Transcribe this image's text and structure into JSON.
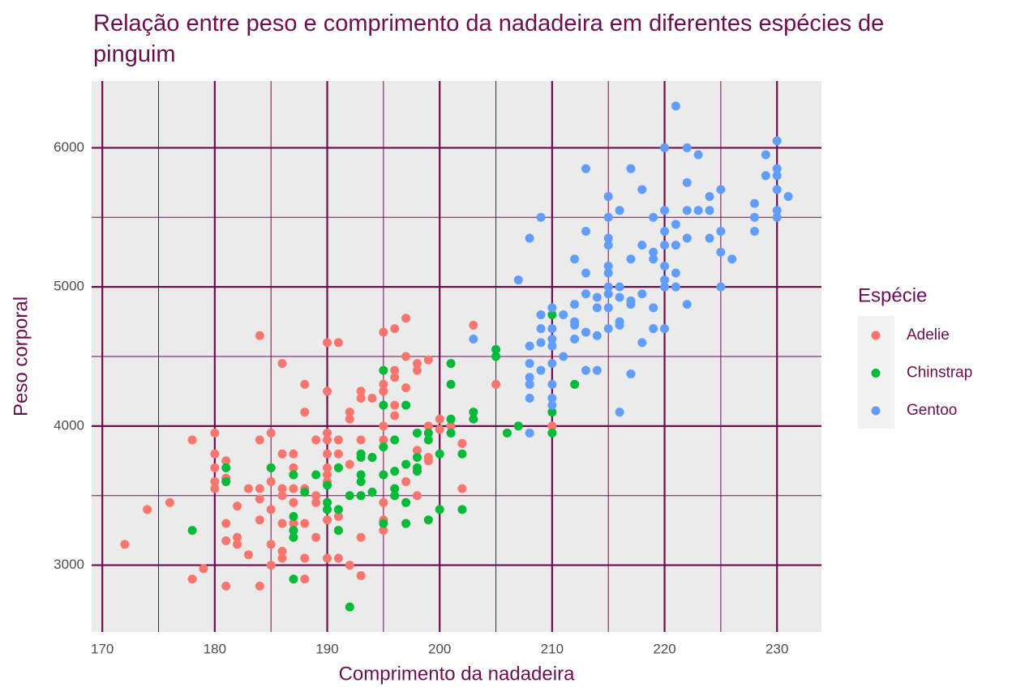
{
  "chart_data": {
    "type": "scatter",
    "title": "Relação entre peso e comprimento da nadadeira em diferentes espécies de pinguim",
    "x_label": "Comprimento da nadadeira",
    "y_label": "Peso corporal",
    "legend_title": "Espécie",
    "xlim": [
      169.05,
      233.95
    ],
    "ylim": [
      2520,
      6480
    ],
    "xticks": [
      170,
      180,
      190,
      200,
      210,
      220,
      230
    ],
    "yticks": [
      3000,
      4000,
      5000,
      6000
    ],
    "minor_xticks": [
      175,
      185,
      195,
      205,
      215,
      225
    ],
    "minor_yticks": [
      3500,
      4500,
      5500
    ],
    "grid": true,
    "legend": "right",
    "series": [
      {
        "name": "Adelie",
        "color": "#F8766D",
        "x": [
          172,
          174,
          176,
          178,
          178,
          179,
          180,
          180,
          180,
          180,
          180,
          181,
          181,
          181,
          181,
          181,
          182,
          182,
          182,
          183,
          183,
          184,
          184,
          184,
          184,
          184,
          184,
          185,
          185,
          185,
          185,
          185,
          185,
          186,
          186,
          186,
          186,
          186,
          186,
          186,
          187,
          187,
          187,
          187,
          187,
          187,
          188,
          188,
          188,
          188,
          188,
          188,
          189,
          189,
          189,
          189,
          190,
          190,
          190,
          190,
          190,
          190,
          190,
          190,
          190,
          190,
          190,
          191,
          191,
          191,
          191,
          191,
          191,
          192,
          192,
          192,
          192,
          193,
          193,
          193,
          193,
          193,
          193,
          194,
          194,
          195,
          195,
          195,
          195,
          195,
          195,
          195,
          195,
          196,
          196,
          196,
          196,
          196,
          196,
          197,
          197,
          197,
          197,
          198,
          198,
          198,
          198,
          199,
          199,
          199,
          199,
          200,
          200,
          201,
          202,
          202,
          203,
          205,
          210
        ],
        "values": [
          3150,
          3400,
          3450,
          3900,
          2900,
          2975,
          3950,
          3800,
          3700,
          3600,
          3550,
          3750,
          3625,
          3300,
          3175,
          2850,
          3200,
          3150,
          3425,
          3550,
          3075,
          4650,
          3900,
          3550,
          3475,
          3325,
          2850,
          3950,
          3700,
          3600,
          3400,
          3150,
          3000,
          4450,
          3800,
          3550,
          3500,
          3300,
          3100,
          3050,
          3800,
          3700,
          3550,
          3450,
          3300,
          3250,
          4300,
          4100,
          3550,
          3300,
          3050,
          2900,
          3900,
          3500,
          3200,
          3450,
          4600,
          4250,
          3950,
          3900,
          3800,
          3700,
          3650,
          3600,
          3450,
          3325,
          3050,
          4600,
          3900,
          3800,
          3350,
          3050,
          3250,
          4100,
          4050,
          3725,
          3000,
          4250,
          4200,
          3900,
          3500,
          3200,
          2925,
          4200,
          3775,
          4675,
          4300,
          4250,
          4000,
          3900,
          3450,
          3325,
          3250,
          4700,
          4400,
          4350,
          4150,
          4075,
          3550,
          4775,
          4500,
          4275,
          3600,
          4450,
          4400,
          3825,
          3500,
          4475,
          4000,
          3775,
          3750,
          4050,
          3975,
          4000,
          3875,
          3550,
          4725,
          4300,
          4000
        ]
      },
      {
        "name": "Chinstrap",
        "color": "#00BA38",
        "x": [
          178,
          181,
          181,
          185,
          187,
          187,
          187,
          187,
          187,
          188,
          189,
          190,
          190,
          190,
          191,
          191,
          191,
          192,
          192,
          193,
          193,
          193,
          193,
          193,
          194,
          194,
          195,
          195,
          195,
          195,
          195,
          196,
          196,
          196,
          196,
          197,
          197,
          197,
          197,
          198,
          198,
          198,
          198,
          199,
          199,
          199,
          200,
          200,
          201,
          201,
          201,
          201,
          202,
          202,
          203,
          203,
          205,
          205,
          206,
          207,
          210,
          210,
          210,
          212
        ],
        "values": [
          3250,
          3700,
          3600,
          3700,
          3650,
          3350,
          3250,
          3200,
          2900,
          3525,
          3650,
          3450,
          3400,
          3575,
          3700,
          3400,
          3250,
          3500,
          2700,
          3800,
          3775,
          3650,
          3600,
          3500,
          3775,
          3525,
          4400,
          4150,
          3850,
          3650,
          3300,
          3900,
          3675,
          3550,
          3500,
          4150,
          3725,
          3450,
          3300,
          3950,
          3775,
          3700,
          3675,
          3950,
          3900,
          3325,
          3800,
          3400,
          4450,
          4300,
          4050,
          3950,
          3800,
          3400,
          4100,
          4050,
          4550,
          4500,
          3950,
          4000,
          4800,
          4100,
          3950,
          4300
        ]
      },
      {
        "name": "Gentoo",
        "color": "#619CFF",
        "x": [
          203,
          207,
          208,
          208,
          208,
          208,
          208,
          208,
          208,
          209,
          209,
          209,
          209,
          209,
          210,
          210,
          210,
          210,
          210,
          210,
          210,
          210,
          211,
          211,
          212,
          212,
          212,
          212,
          212,
          213,
          213,
          213,
          213,
          213,
          213,
          214,
          214,
          214,
          214,
          215,
          215,
          215,
          215,
          215,
          215,
          215,
          215,
          215,
          215,
          216,
          216,
          216,
          216,
          216,
          216,
          217,
          217,
          217,
          217,
          217,
          218,
          218,
          218,
          218,
          219,
          219,
          219,
          219,
          219,
          220,
          220,
          220,
          220,
          220,
          220,
          220,
          220,
          221,
          221,
          221,
          221,
          221,
          222,
          222,
          222,
          222,
          222,
          223,
          223,
          224,
          224,
          224,
          225,
          225,
          225,
          225,
          226,
          228,
          228,
          228,
          229,
          229,
          230,
          230,
          230,
          230,
          230,
          230,
          231
        ],
        "values": [
          4625,
          5050,
          5350,
          4575,
          4450,
          4300,
          4350,
          4200,
          3950,
          5500,
          4800,
          4700,
          4600,
          4400,
          4850,
          4700,
          4625,
          4575,
          4450,
          4300,
          4200,
          4150,
          4800,
          4500,
          5200,
          4875,
          4750,
          4725,
          4625,
          5850,
          5400,
          5100,
          4950,
          4675,
          4400,
          4925,
          4850,
          4650,
          4400,
          5650,
          5500,
          5350,
          5300,
          5150,
          5100,
          5000,
          4950,
          4850,
          4700,
          5550,
          5000,
          4925,
          4750,
          4725,
          4100,
          5850,
          5200,
          4900,
          4875,
          4375,
          5700,
          5300,
          4950,
          4600,
          5500,
          5250,
          5200,
          4850,
          4700,
          6000,
          5550,
          5400,
          5300,
          5150,
          5050,
          5000,
          4700,
          6300,
          5450,
          5300,
          5100,
          5000,
          6000,
          5750,
          5550,
          5350,
          4875,
          5950,
          5550,
          5650,
          5550,
          5350,
          5700,
          5400,
          5250,
          5000,
          5200,
          5600,
          5500,
          5400,
          5950,
          5800,
          6050,
          5850,
          5800,
          5700,
          5550,
          5500,
          5650
        ]
      }
    ]
  }
}
